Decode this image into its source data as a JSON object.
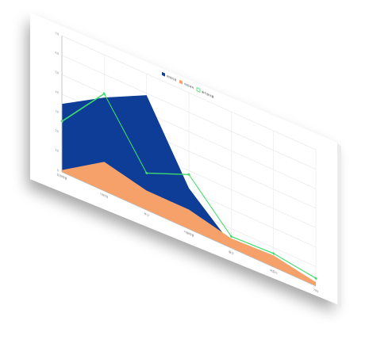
{
  "chart_data": {
    "type": "area",
    "title": "",
    "xlabel": "",
    "ylabel": "",
    "categories": [
      "강원특별",
      "대전광",
      "부산",
      "서울특별",
      "울산",
      "세종시",
      "기타"
    ],
    "y_ticks": [
      "0",
      "10",
      "20",
      "30",
      "40",
      "50",
      "60",
      "70"
    ],
    "ylim": [
      0,
      70
    ],
    "grid": true,
    "legend_position": "top-right",
    "series": [
      {
        "name": "판매지원",
        "kind": "area",
        "color": "#0d3d96",
        "values": [
          35,
          48,
          59,
          21,
          2,
          2,
          1
        ]
      },
      {
        "name": "비판매처",
        "kind": "area",
        "color": "#f7a16a",
        "values": [
          1,
          15,
          10,
          10,
          5,
          6,
          2
        ]
      },
      {
        "name": "총지원비율",
        "kind": "line",
        "color": "#3ddc6a",
        "values": [
          26,
          50,
          19,
          28,
          6,
          7,
          4
        ]
      }
    ]
  }
}
